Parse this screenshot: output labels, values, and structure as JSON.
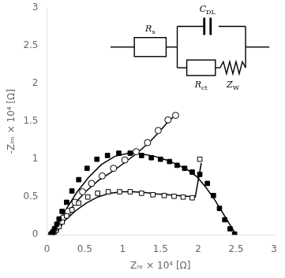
{
  "chart_data": {
    "type": "scatter",
    "xlabel": "Zᵣₑ × 10⁴ [Ω]",
    "ylabel": "-Zᵢₘ × 10⁴ [Ω]",
    "xlim": [
      0,
      3
    ],
    "ylim": [
      0,
      3
    ],
    "xticks": [
      0,
      0.5,
      1,
      1.5,
      2,
      2.5,
      3
    ],
    "yticks": [
      0,
      0.5,
      1,
      1.5,
      2,
      2.5,
      3
    ],
    "grid": false,
    "series": [
      {
        "type": "scatter",
        "marker": "square",
        "color": "#000000",
        "x": [
          0.06,
          0.08,
          0.1,
          0.13,
          0.16,
          0.2,
          0.26,
          0.33,
          0.42,
          0.53,
          0.66,
          0.8,
          0.95,
          1.1,
          1.25,
          1.38,
          1.5,
          1.62,
          1.72,
          1.82,
          1.92,
          2.02,
          2.12,
          2.2,
          2.28,
          2.35,
          2.42,
          2.48
        ],
        "values": [
          0.01,
          0.04,
          0.08,
          0.14,
          0.21,
          0.31,
          0.43,
          0.58,
          0.73,
          0.88,
          1.0,
          1.05,
          1.08,
          1.08,
          1.05,
          1.02,
          1.0,
          0.97,
          0.92,
          0.88,
          0.83,
          0.8,
          0.68,
          0.52,
          0.35,
          0.2,
          0.08,
          0.01
        ]
      },
      {
        "type": "scatter",
        "marker": "open_square",
        "color": "#000000",
        "x": [
          0.06,
          0.09,
          0.12,
          0.16,
          0.2,
          0.26,
          0.33,
          0.42,
          0.54,
          0.67,
          0.81,
          0.96,
          1.1,
          1.25,
          1.4,
          1.55,
          1.68,
          1.8,
          1.92,
          2.02
        ],
        "values": [
          0.01,
          0.03,
          0.06,
          0.11,
          0.17,
          0.25,
          0.33,
          0.42,
          0.5,
          0.55,
          0.57,
          0.57,
          0.57,
          0.55,
          0.53,
          0.52,
          0.51,
          0.5,
          0.49,
          1.0
        ]
      },
      {
        "type": "scatter",
        "marker": "open_circle",
        "color": "#000000",
        "x": [
          0.06,
          0.09,
          0.12,
          0.16,
          0.21,
          0.28,
          0.37,
          0.47,
          0.59,
          0.73,
          0.88,
          1.03,
          1.18,
          1.33,
          1.47,
          1.6,
          1.7
        ],
        "values": [
          0.01,
          0.04,
          0.08,
          0.14,
          0.22,
          0.31,
          0.43,
          0.57,
          0.68,
          0.78,
          0.88,
          0.99,
          1.1,
          1.22,
          1.38,
          1.52,
          1.58
        ]
      },
      {
        "type": "line",
        "line_style": "solid",
        "color": "#000000",
        "x": [
          0.05,
          0.08,
          0.12,
          0.18,
          0.28,
          0.4,
          0.55,
          0.72,
          0.9,
          1.08,
          1.25,
          1.42,
          1.58,
          1.72,
          1.86,
          1.98,
          2.1,
          2.22,
          2.33,
          2.42,
          2.49
        ],
        "values": [
          0.01,
          0.05,
          0.12,
          0.22,
          0.38,
          0.57,
          0.76,
          0.93,
          1.04,
          1.08,
          1.07,
          1.04,
          0.99,
          0.93,
          0.86,
          0.77,
          0.63,
          0.46,
          0.28,
          0.13,
          0.02
        ]
      },
      {
        "type": "line",
        "line_style": "solid",
        "color": "#000000",
        "x": [
          0.05,
          0.08,
          0.12,
          0.18,
          0.27,
          0.38,
          0.52,
          0.67,
          0.83,
          0.99,
          1.14,
          1.3,
          1.45,
          1.59,
          1.72,
          1.85,
          1.96,
          2.04
        ],
        "values": [
          0.01,
          0.03,
          0.07,
          0.13,
          0.22,
          0.32,
          0.42,
          0.5,
          0.55,
          0.57,
          0.57,
          0.56,
          0.54,
          0.53,
          0.52,
          0.51,
          0.5,
          0.95
        ]
      },
      {
        "type": "line",
        "line_style": "solid",
        "color": "#000000",
        "x": [
          0.05,
          0.08,
          0.12,
          0.18,
          0.27,
          0.38,
          0.52,
          0.68,
          0.85,
          1.02,
          1.19,
          1.35,
          1.5,
          1.62,
          1.7
        ],
        "values": [
          0.01,
          0.04,
          0.09,
          0.17,
          0.29,
          0.43,
          0.58,
          0.72,
          0.83,
          0.95,
          1.08,
          1.22,
          1.38,
          1.52,
          1.58
        ]
      }
    ],
    "annotations": [
      "CDL",
      "Rct",
      "ZW",
      "Rs"
    ]
  }
}
